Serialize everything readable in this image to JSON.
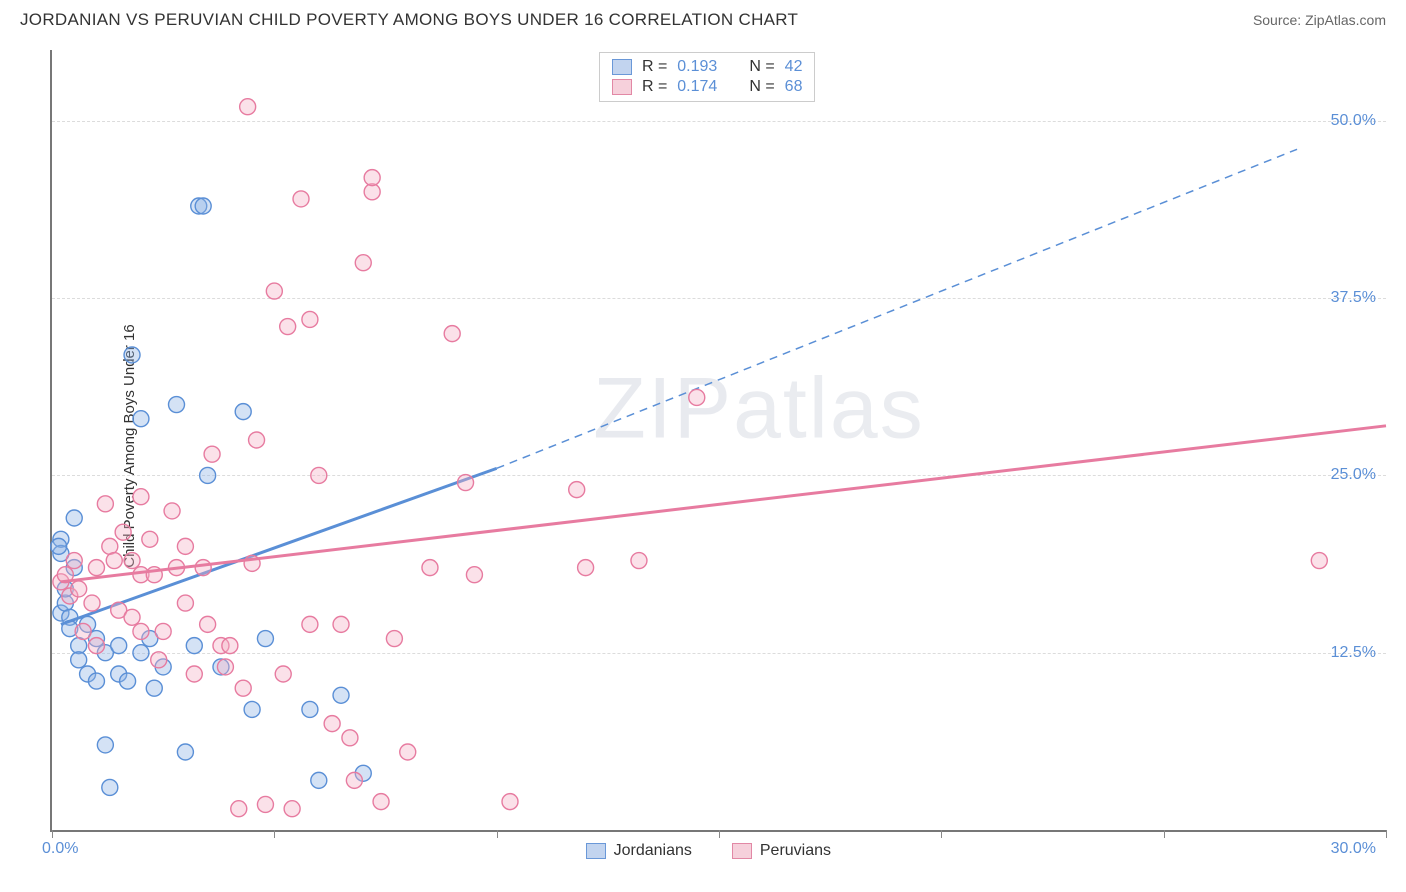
{
  "header": {
    "title": "JORDANIAN VS PERUVIAN CHILD POVERTY AMONG BOYS UNDER 16 CORRELATION CHART",
    "source": "Source: ZipAtlas.com"
  },
  "chart": {
    "type": "scatter",
    "ylabel": "Child Poverty Among Boys Under 16",
    "watermark": "ZIPatlas",
    "background_color": "#ffffff",
    "grid_color": "#dcdcdc",
    "axis_color": "#777777",
    "xlim": [
      0,
      30
    ],
    "ylim": [
      0,
      55
    ],
    "x_ticks": [
      0,
      5,
      10,
      15,
      20,
      25,
      30
    ],
    "x_tick_labels_shown": {
      "0": "0.0%",
      "30": "30.0%"
    },
    "y_gridlines": [
      12.5,
      25.0,
      37.5,
      50.0
    ],
    "y_tick_labels": [
      "12.5%",
      "25.0%",
      "37.5%",
      "50.0%"
    ],
    "marker_radius": 8,
    "marker_stroke_width": 1.4,
    "marker_fill_opacity": 0.38,
    "series": [
      {
        "name": "Jordanians",
        "color_stroke": "#5a8fd6",
        "color_fill": "#8fb3e6",
        "R": "0.193",
        "N": "42",
        "points": [
          [
            0.2,
            15.3
          ],
          [
            0.3,
            16.0
          ],
          [
            0.3,
            17.0
          ],
          [
            0.4,
            15.0
          ],
          [
            0.4,
            14.2
          ],
          [
            0.5,
            18.5
          ],
          [
            0.6,
            13.0
          ],
          [
            0.6,
            12.0
          ],
          [
            0.8,
            11.0
          ],
          [
            0.8,
            14.5
          ],
          [
            1.0,
            13.5
          ],
          [
            1.0,
            10.5
          ],
          [
            1.2,
            12.5
          ],
          [
            1.2,
            6.0
          ],
          [
            1.3,
            3.0
          ],
          [
            1.5,
            13.0
          ],
          [
            1.5,
            11.0
          ],
          [
            1.7,
            10.5
          ],
          [
            1.8,
            33.5
          ],
          [
            2.0,
            12.5
          ],
          [
            2.0,
            29.0
          ],
          [
            2.2,
            13.5
          ],
          [
            2.3,
            10.0
          ],
          [
            2.5,
            11.5
          ],
          [
            2.8,
            30.0
          ],
          [
            3.0,
            5.5
          ],
          [
            3.2,
            13.0
          ],
          [
            3.3,
            44.0
          ],
          [
            3.4,
            44.0
          ],
          [
            3.5,
            25.0
          ],
          [
            3.8,
            11.5
          ],
          [
            4.3,
            29.5
          ],
          [
            4.5,
            8.5
          ],
          [
            4.8,
            13.5
          ],
          [
            5.8,
            8.5
          ],
          [
            6.0,
            3.5
          ],
          [
            6.5,
            9.5
          ],
          [
            7.0,
            4.0
          ],
          [
            0.5,
            22.0
          ],
          [
            0.2,
            20.5
          ],
          [
            0.2,
            19.5
          ],
          [
            0.15,
            20.0
          ]
        ],
        "trend_solid": {
          "x1": 0.2,
          "y1": 14.5,
          "x2": 10.0,
          "y2": 25.5
        },
        "trend_dashed": {
          "x1": 10.0,
          "y1": 25.5,
          "x2": 28.0,
          "y2": 48.0
        },
        "trend_width_solid": 3,
        "trend_width_dashed": 1.5,
        "trend_dash": "8 6"
      },
      {
        "name": "Peruvians",
        "color_stroke": "#e77ba0",
        "color_fill": "#f5b0c5",
        "R": "0.174",
        "N": "68",
        "points": [
          [
            0.2,
            17.5
          ],
          [
            0.3,
            18.0
          ],
          [
            0.4,
            16.5
          ],
          [
            0.5,
            19.0
          ],
          [
            0.6,
            17.0
          ],
          [
            0.7,
            14.0
          ],
          [
            0.9,
            16.0
          ],
          [
            1.0,
            18.5
          ],
          [
            1.2,
            23.0
          ],
          [
            1.3,
            20.0
          ],
          [
            1.4,
            19.0
          ],
          [
            1.5,
            15.5
          ],
          [
            1.6,
            21.0
          ],
          [
            1.8,
            19.0
          ],
          [
            1.8,
            15.0
          ],
          [
            2.0,
            18.0
          ],
          [
            2.0,
            14.0
          ],
          [
            2.2,
            20.5
          ],
          [
            2.3,
            18.0
          ],
          [
            2.4,
            12.0
          ],
          [
            2.5,
            14.0
          ],
          [
            2.7,
            22.5
          ],
          [
            2.8,
            18.5
          ],
          [
            3.0,
            20.0
          ],
          [
            3.0,
            16.0
          ],
          [
            3.2,
            11.0
          ],
          [
            3.4,
            18.5
          ],
          [
            3.5,
            14.5
          ],
          [
            3.8,
            13.0
          ],
          [
            3.9,
            11.5
          ],
          [
            4.0,
            13.0
          ],
          [
            4.2,
            1.5
          ],
          [
            4.3,
            10.0
          ],
          [
            4.4,
            51.0
          ],
          [
            4.6,
            27.5
          ],
          [
            4.8,
            1.8
          ],
          [
            5.0,
            38.0
          ],
          [
            5.2,
            11.0
          ],
          [
            5.3,
            35.5
          ],
          [
            5.4,
            1.5
          ],
          [
            5.6,
            44.5
          ],
          [
            5.8,
            14.5
          ],
          [
            5.8,
            36.0
          ],
          [
            6.0,
            25.0
          ],
          [
            6.3,
            7.5
          ],
          [
            6.5,
            14.5
          ],
          [
            6.7,
            6.5
          ],
          [
            6.8,
            3.5
          ],
          [
            7.0,
            40.0
          ],
          [
            7.2,
            45.0
          ],
          [
            7.2,
            46.0
          ],
          [
            7.4,
            2.0
          ],
          [
            7.7,
            13.5
          ],
          [
            8.0,
            5.5
          ],
          [
            8.5,
            18.5
          ],
          [
            9.0,
            35.0
          ],
          [
            9.3,
            24.5
          ],
          [
            9.5,
            18.0
          ],
          [
            10.3,
            2.0
          ],
          [
            11.8,
            24.0
          ],
          [
            12.0,
            18.5
          ],
          [
            13.2,
            19.0
          ],
          [
            14.5,
            30.5
          ],
          [
            28.5,
            19.0
          ],
          [
            2.0,
            23.5
          ],
          [
            1.0,
            13.0
          ],
          [
            3.6,
            26.5
          ],
          [
            4.5,
            18.8
          ]
        ],
        "trend_solid": {
          "x1": 0.2,
          "y1": 17.5,
          "x2": 30.0,
          "y2": 28.5
        },
        "trend_width_solid": 3
      }
    ],
    "legend_top": {
      "rows": [
        {
          "swatch": "blue",
          "r_label": "R =",
          "r_val": "0.193",
          "n_label": "N =",
          "n_val": "42"
        },
        {
          "swatch": "pink",
          "r_label": "R =",
          "r_val": "0.174",
          "n_label": "N =",
          "n_val": "68"
        }
      ]
    },
    "legend_bottom": [
      {
        "swatch": "blue",
        "label": "Jordanians"
      },
      {
        "swatch": "pink",
        "label": "Peruvians"
      }
    ],
    "tick_label_color": "#5b8fd6",
    "tick_label_fontsize": 16
  }
}
